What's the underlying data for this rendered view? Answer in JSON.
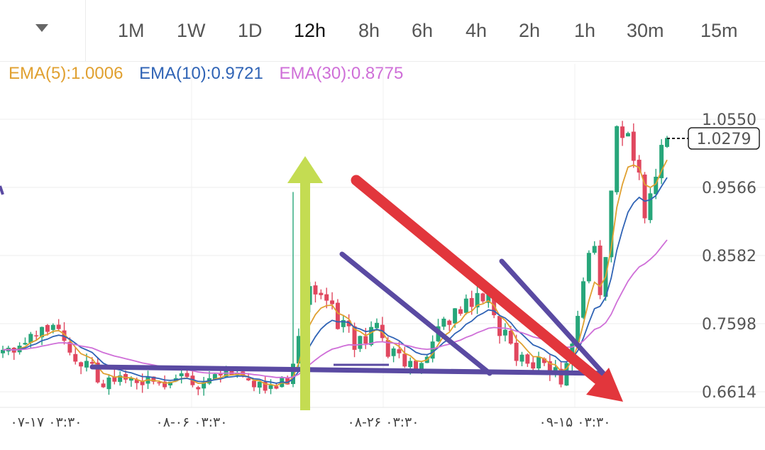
{
  "toolbar": {
    "timeframes": [
      "1M",
      "1W",
      "1D",
      "12h",
      "8h",
      "6h",
      "4h",
      "2h",
      "1h",
      "30m",
      "15m"
    ],
    "active": "12h"
  },
  "legend": {
    "ema5": {
      "label": "EMA(5):1.0006",
      "color": "#e0a030"
    },
    "ema10": {
      "label": "EMA(10):0.9721",
      "color": "#2f63b5"
    },
    "ema30": {
      "label": "EMA(30):0.8775",
      "color": "#cf6fd8"
    }
  },
  "chart_data": {
    "type": "candlestick",
    "y_ticks": [
      "1.0550",
      "0.9566",
      "0.8582",
      "0.7598",
      "0.6614"
    ],
    "last_price": "1.0279",
    "x_ticks": [
      "۰۷-۱۷ ۰۳:۳۰",
      "۰۸-۰۶ ۰۳:۳۰",
      "۰۸-۲۶ ۰۳:۳۰",
      "۰۹-۱۵ ۰۳:۳۰"
    ],
    "ylim": [
      0.64,
      1.07
    ],
    "grid": true,
    "up_color": "#27a67a",
    "down_color": "#e0475f",
    "candle_close": [
      0.722,
      0.725,
      0.718,
      0.728,
      0.732,
      0.745,
      0.742,
      0.755,
      0.748,
      0.758,
      0.752,
      0.735,
      0.718,
      0.705,
      0.698,
      0.706,
      0.702,
      0.675,
      0.668,
      0.682,
      0.676,
      0.685,
      0.679,
      0.681,
      0.674,
      0.671,
      0.683,
      0.676,
      0.675,
      0.668,
      0.676,
      0.681,
      0.688,
      0.683,
      0.671,
      0.665,
      0.675,
      0.681,
      0.687,
      0.685,
      0.693,
      0.686,
      0.689,
      0.684,
      0.678,
      0.668,
      0.676,
      0.663,
      0.671,
      0.666,
      0.683,
      0.672,
      0.702,
      0.742,
      0.786,
      0.814,
      0.802,
      0.801,
      0.793,
      0.788,
      0.752,
      0.765,
      0.756,
      0.722,
      0.742,
      0.731,
      0.755,
      0.761,
      0.739,
      0.712,
      0.724,
      0.717,
      0.698,
      0.706,
      0.692,
      0.703,
      0.712,
      0.734,
      0.756,
      0.767,
      0.758,
      0.782,
      0.774,
      0.796,
      0.784,
      0.804,
      0.792,
      0.802,
      0.772,
      0.742,
      0.751,
      0.731,
      0.706,
      0.715,
      0.702,
      0.695,
      0.712,
      0.703,
      0.688,
      0.697,
      0.672,
      0.703,
      0.731,
      0.771,
      0.821,
      0.862,
      0.872,
      0.801,
      0.856,
      0.952,
      1.045,
      1.028,
      1.035,
      0.995,
      0.978,
      0.912,
      0.948,
      0.972,
      1.018,
      1.028
    ],
    "arrows": [
      {
        "type": "up-arrow",
        "color": "#c4dc52"
      },
      {
        "type": "down-arrow",
        "color": "#e2363c"
      }
    ],
    "trendlines_color": "#5a4aa2"
  }
}
